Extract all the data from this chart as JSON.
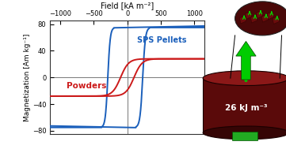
{
  "title": "Field [kA m⁻²]",
  "ylabel": "Magnetization [Am kg⁻¹]",
  "xlim": [
    -1150,
    1150
  ],
  "ylim": [
    -85,
    85
  ],
  "xticks": [
    -1000,
    -500,
    0,
    500,
    1000
  ],
  "yticks": [
    -80,
    -40,
    0,
    40,
    80
  ],
  "background_color": "#ffffff",
  "blue_color": "#1a5fbb",
  "red_color": "#cc1a1a",
  "label_blue": "SPS Pellets",
  "label_red": "Powders",
  "energy_label": "26 kJ m⁻³",
  "disk_body_color": "#5a0a0a",
  "disk_top_color": "#8b1818",
  "disk_bottom_color": "#3a0808",
  "arrow_color": "#00cc00",
  "inset_color": "#6a1010"
}
